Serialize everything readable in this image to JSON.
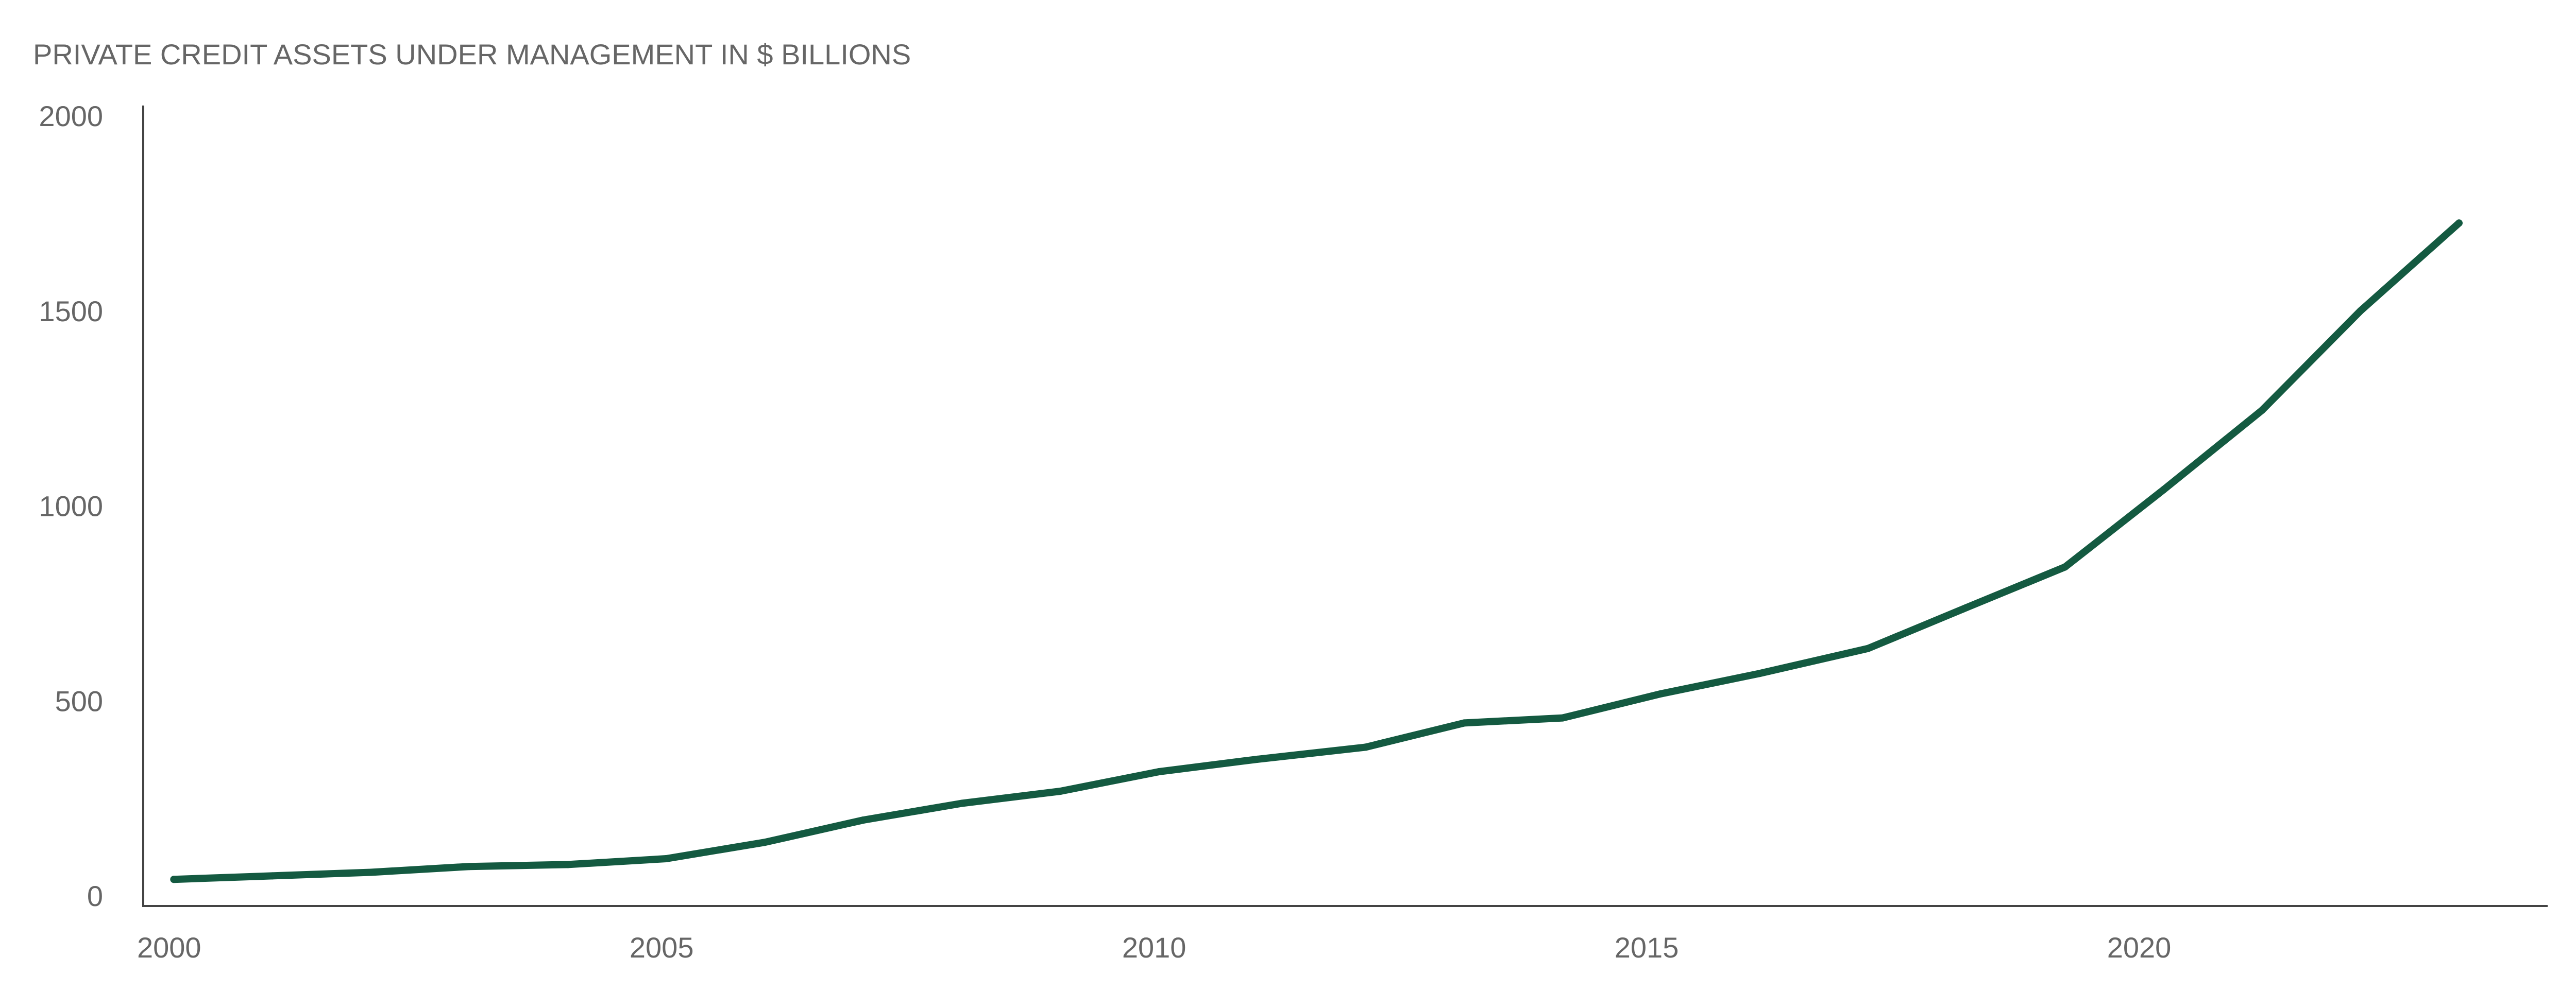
{
  "chart_data": {
    "type": "line",
    "title": "PRIVATE CREDIT ASSETS UNDER MANAGEMENT IN $ BILLIONS",
    "xlabel": "",
    "ylabel": "",
    "xlim": [
      1999.8,
      2024.2
    ],
    "ylim": [
      0,
      2000
    ],
    "x_ticks": [
      2000,
      2005,
      2010,
      2015,
      2020
    ],
    "y_ticks": [
      0,
      500,
      1000,
      1500,
      2000
    ],
    "grid": false,
    "legend": "none",
    "colors": {
      "line": "#145a41",
      "axis": "#444444",
      "text": "#666666"
    },
    "series": [
      {
        "name": "Private credit AUM",
        "x": [
          2000.1,
          2001.1,
          2002.1,
          2003.1,
          2004.1,
          2005.1,
          2006.1,
          2007.1,
          2008.1,
          2009.1,
          2010.1,
          2011.1,
          2012.2,
          2013.2,
          2014.2,
          2015.2,
          2016.2,
          2017.3,
          2018.3,
          2019.3,
          2020.3,
          2021.3,
          2022.3,
          2023.3
        ],
        "values": [
          42,
          51,
          60,
          75,
          80,
          95,
          137,
          194,
          237,
          268,
          318,
          350,
          381,
          443,
          456,
          518,
          570,
          634,
          739,
          843,
          1041,
          1245,
          1500,
          1725
        ]
      }
    ]
  }
}
